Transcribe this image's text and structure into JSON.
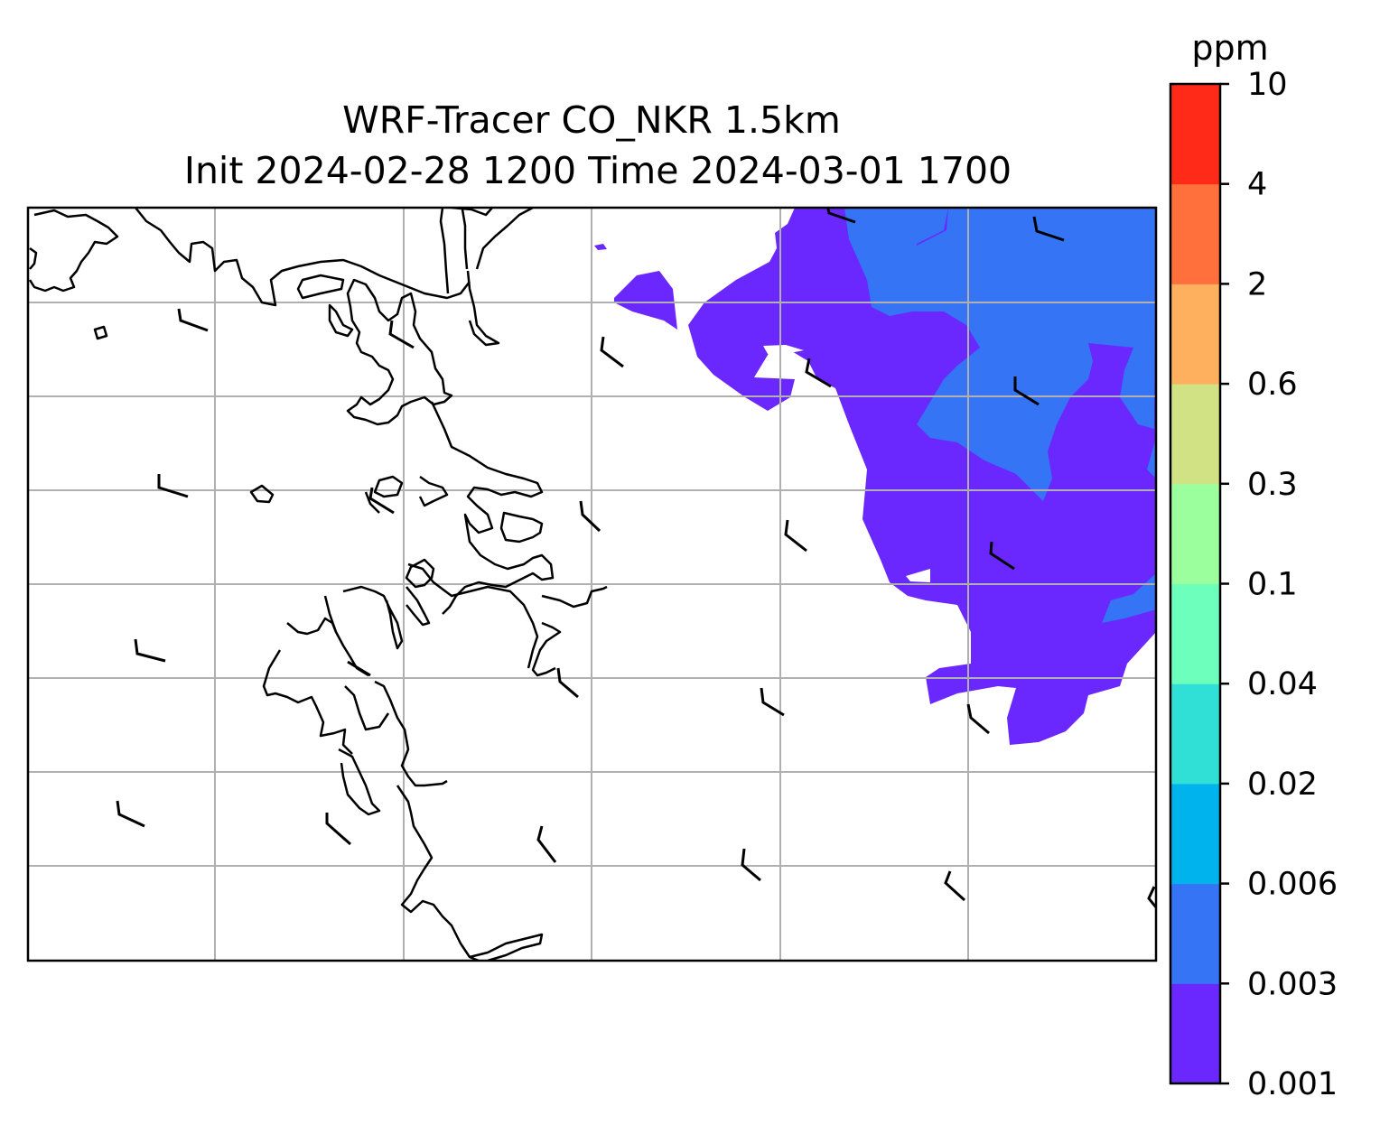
{
  "figure": {
    "title_line1": "WRF-Tracer CO_NKR 1.5km",
    "title_line2": "Init 2024-02-28 1200 Time 2024-03-01 1700"
  },
  "colorbar": {
    "unit": "ppm",
    "ticks": [
      "0.001",
      "0.003",
      "0.006",
      "0.02",
      "0.04",
      "0.1",
      "0.3",
      "0.6",
      "2",
      "4",
      "10"
    ],
    "colors": [
      "#6a28fe",
      "#3574f4",
      "#00b3ec",
      "#30e0d6",
      "#6dffbc",
      "#9cff9e",
      "#d0e284",
      "#ffb05e",
      "#ff703c",
      "#ff2a17"
    ]
  },
  "map": {
    "gridlines": true,
    "tracer_colors_present": [
      "#6a28fe",
      "#3574f4"
    ],
    "wind_barbs": true
  }
}
